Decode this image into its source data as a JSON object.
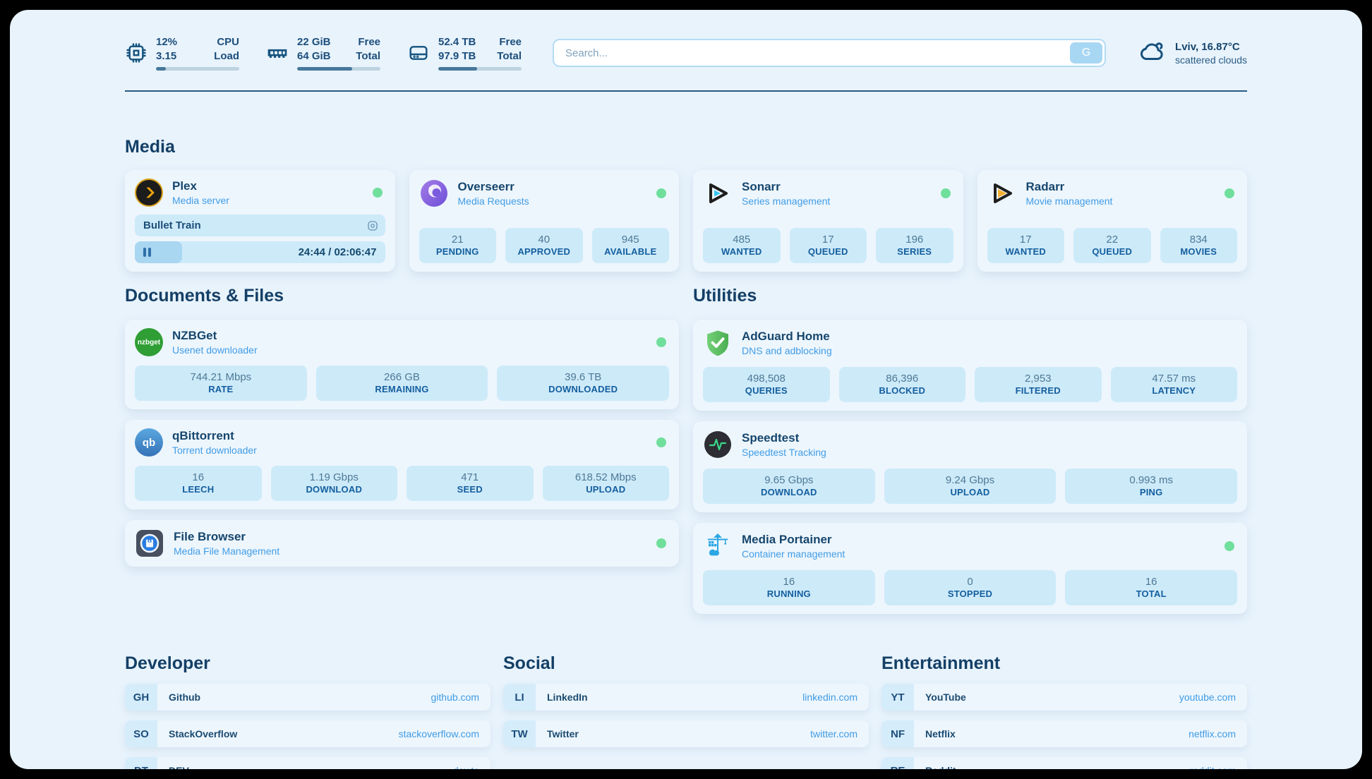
{
  "header": {
    "stats": [
      {
        "icon": "cpu-icon",
        "values": [
          "12%",
          "3.15"
        ],
        "labels": [
          "CPU",
          "Load"
        ],
        "progress": 12
      },
      {
        "icon": "ram-icon",
        "values": [
          "22 GiB",
          "64 GiB"
        ],
        "labels": [
          "Free",
          "Total"
        ],
        "progress": 66
      },
      {
        "icon": "disk-icon",
        "values": [
          "52.4 TB",
          "97.9 TB"
        ],
        "labels": [
          "Free",
          "Total"
        ],
        "progress": 47
      }
    ],
    "search": {
      "placeholder": "Search...",
      "button_label": "G"
    },
    "weather": {
      "icon": "cloud-icon",
      "location": "Lviv, 16.87°C",
      "condition": "scattered clouds"
    }
  },
  "media": {
    "heading": "Media",
    "plex": {
      "icon": "plex-icon",
      "title": "Plex",
      "subtitle": "Media server",
      "now_playing": "Bullet Train",
      "time": "24:44 / 02:06:47",
      "progress": 19
    },
    "overseerr": {
      "icon": "overseerr-icon",
      "title": "Overseerr",
      "subtitle": "Media Requests",
      "stats": [
        {
          "value": "21",
          "label": "PENDING"
        },
        {
          "value": "40",
          "label": "APPROVED"
        },
        {
          "value": "945",
          "label": "AVAILABLE"
        }
      ]
    },
    "sonarr": {
      "icon": "sonarr-icon",
      "title": "Sonarr",
      "subtitle": "Series management",
      "stats": [
        {
          "value": "485",
          "label": "WANTED"
        },
        {
          "value": "17",
          "label": "QUEUED"
        },
        {
          "value": "196",
          "label": "SERIES"
        }
      ]
    },
    "radarr": {
      "icon": "radarr-icon",
      "title": "Radarr",
      "subtitle": "Movie management",
      "stats": [
        {
          "value": "17",
          "label": "WANTED"
        },
        {
          "value": "22",
          "label": "QUEUED"
        },
        {
          "value": "834",
          "label": "MOVIES"
        }
      ]
    }
  },
  "documents": {
    "heading": "Documents & Files",
    "nzbget": {
      "icon": "nzbget-icon",
      "icon_text": "nzbget",
      "title": "NZBGet",
      "subtitle": "Usenet downloader",
      "stats": [
        {
          "value": "744.21 Mbps",
          "label": "RATE"
        },
        {
          "value": "266 GB",
          "label": "REMAINING"
        },
        {
          "value": "39.6 TB",
          "label": "DOWNLOADED"
        }
      ]
    },
    "qbittorrent": {
      "icon": "qbittorrent-icon",
      "icon_text": "qb",
      "title": "qBittorrent",
      "subtitle": "Torrent downloader",
      "stats": [
        {
          "value": "16",
          "label": "LEECH"
        },
        {
          "value": "1.19 Gbps",
          "label": "DOWNLOAD"
        },
        {
          "value": "471",
          "label": "SEED"
        },
        {
          "value": "618.52 Mbps",
          "label": "UPLOAD"
        }
      ]
    },
    "filebrowser": {
      "icon": "filebrowser-icon",
      "title": "File Browser",
      "subtitle": "Media File Management"
    }
  },
  "utilities": {
    "heading": "Utilities",
    "adguard": {
      "icon": "adguard-icon",
      "title": "AdGuard Home",
      "subtitle": "DNS and adblocking",
      "stats": [
        {
          "value": "498,508",
          "label": "QUERIES"
        },
        {
          "value": "86,396",
          "label": "BLOCKED"
        },
        {
          "value": "2,953",
          "label": "FILTERED"
        },
        {
          "value": "47.57 ms",
          "label": "LATENCY"
        }
      ]
    },
    "speedtest": {
      "icon": "speedtest-icon",
      "title": "Speedtest",
      "subtitle": "Speedtest Tracking",
      "stats": [
        {
          "value": "9.65 Gbps",
          "label": "DOWNLOAD"
        },
        {
          "value": "9.24 Gbps",
          "label": "UPLOAD"
        },
        {
          "value": "0.993 ms",
          "label": "PING"
        }
      ]
    },
    "portainer": {
      "icon": "portainer-icon",
      "title": "Media Portainer",
      "subtitle": "Container management",
      "stats": [
        {
          "value": "16",
          "label": "RUNNING"
        },
        {
          "value": "0",
          "label": "STOPPED"
        },
        {
          "value": "16",
          "label": "TOTAL"
        }
      ]
    }
  },
  "bookmarks": [
    {
      "heading": "Developer",
      "links": [
        {
          "abbr": "GH",
          "name": "Github",
          "url": "github.com"
        },
        {
          "abbr": "SO",
          "name": "StackOverflow",
          "url": "stackoverflow.com"
        },
        {
          "abbr": "DT",
          "name": "DEV",
          "url": "dev.to"
        }
      ]
    },
    {
      "heading": "Social",
      "links": [
        {
          "abbr": "LI",
          "name": "LinkedIn",
          "url": "linkedin.com"
        },
        {
          "abbr": "TW",
          "name": "Twitter",
          "url": "twitter.com"
        }
      ]
    },
    {
      "heading": "Entertainment",
      "links": [
        {
          "abbr": "YT",
          "name": "YouTube",
          "url": "youtube.com"
        },
        {
          "abbr": "NF",
          "name": "Netflix",
          "url": "netflix.com"
        },
        {
          "abbr": "RE",
          "name": "Reddit",
          "url": "reddit.com"
        }
      ]
    }
  ],
  "colors": {
    "page_bg": "#e8f3fc",
    "card_bg": "#edf6fd",
    "tile_bg": "#cdeaf9",
    "navy": "#16466d",
    "link_blue": "#3f9be4",
    "status_green": "#70df9c",
    "accent_yellow": "#f0a50d"
  }
}
